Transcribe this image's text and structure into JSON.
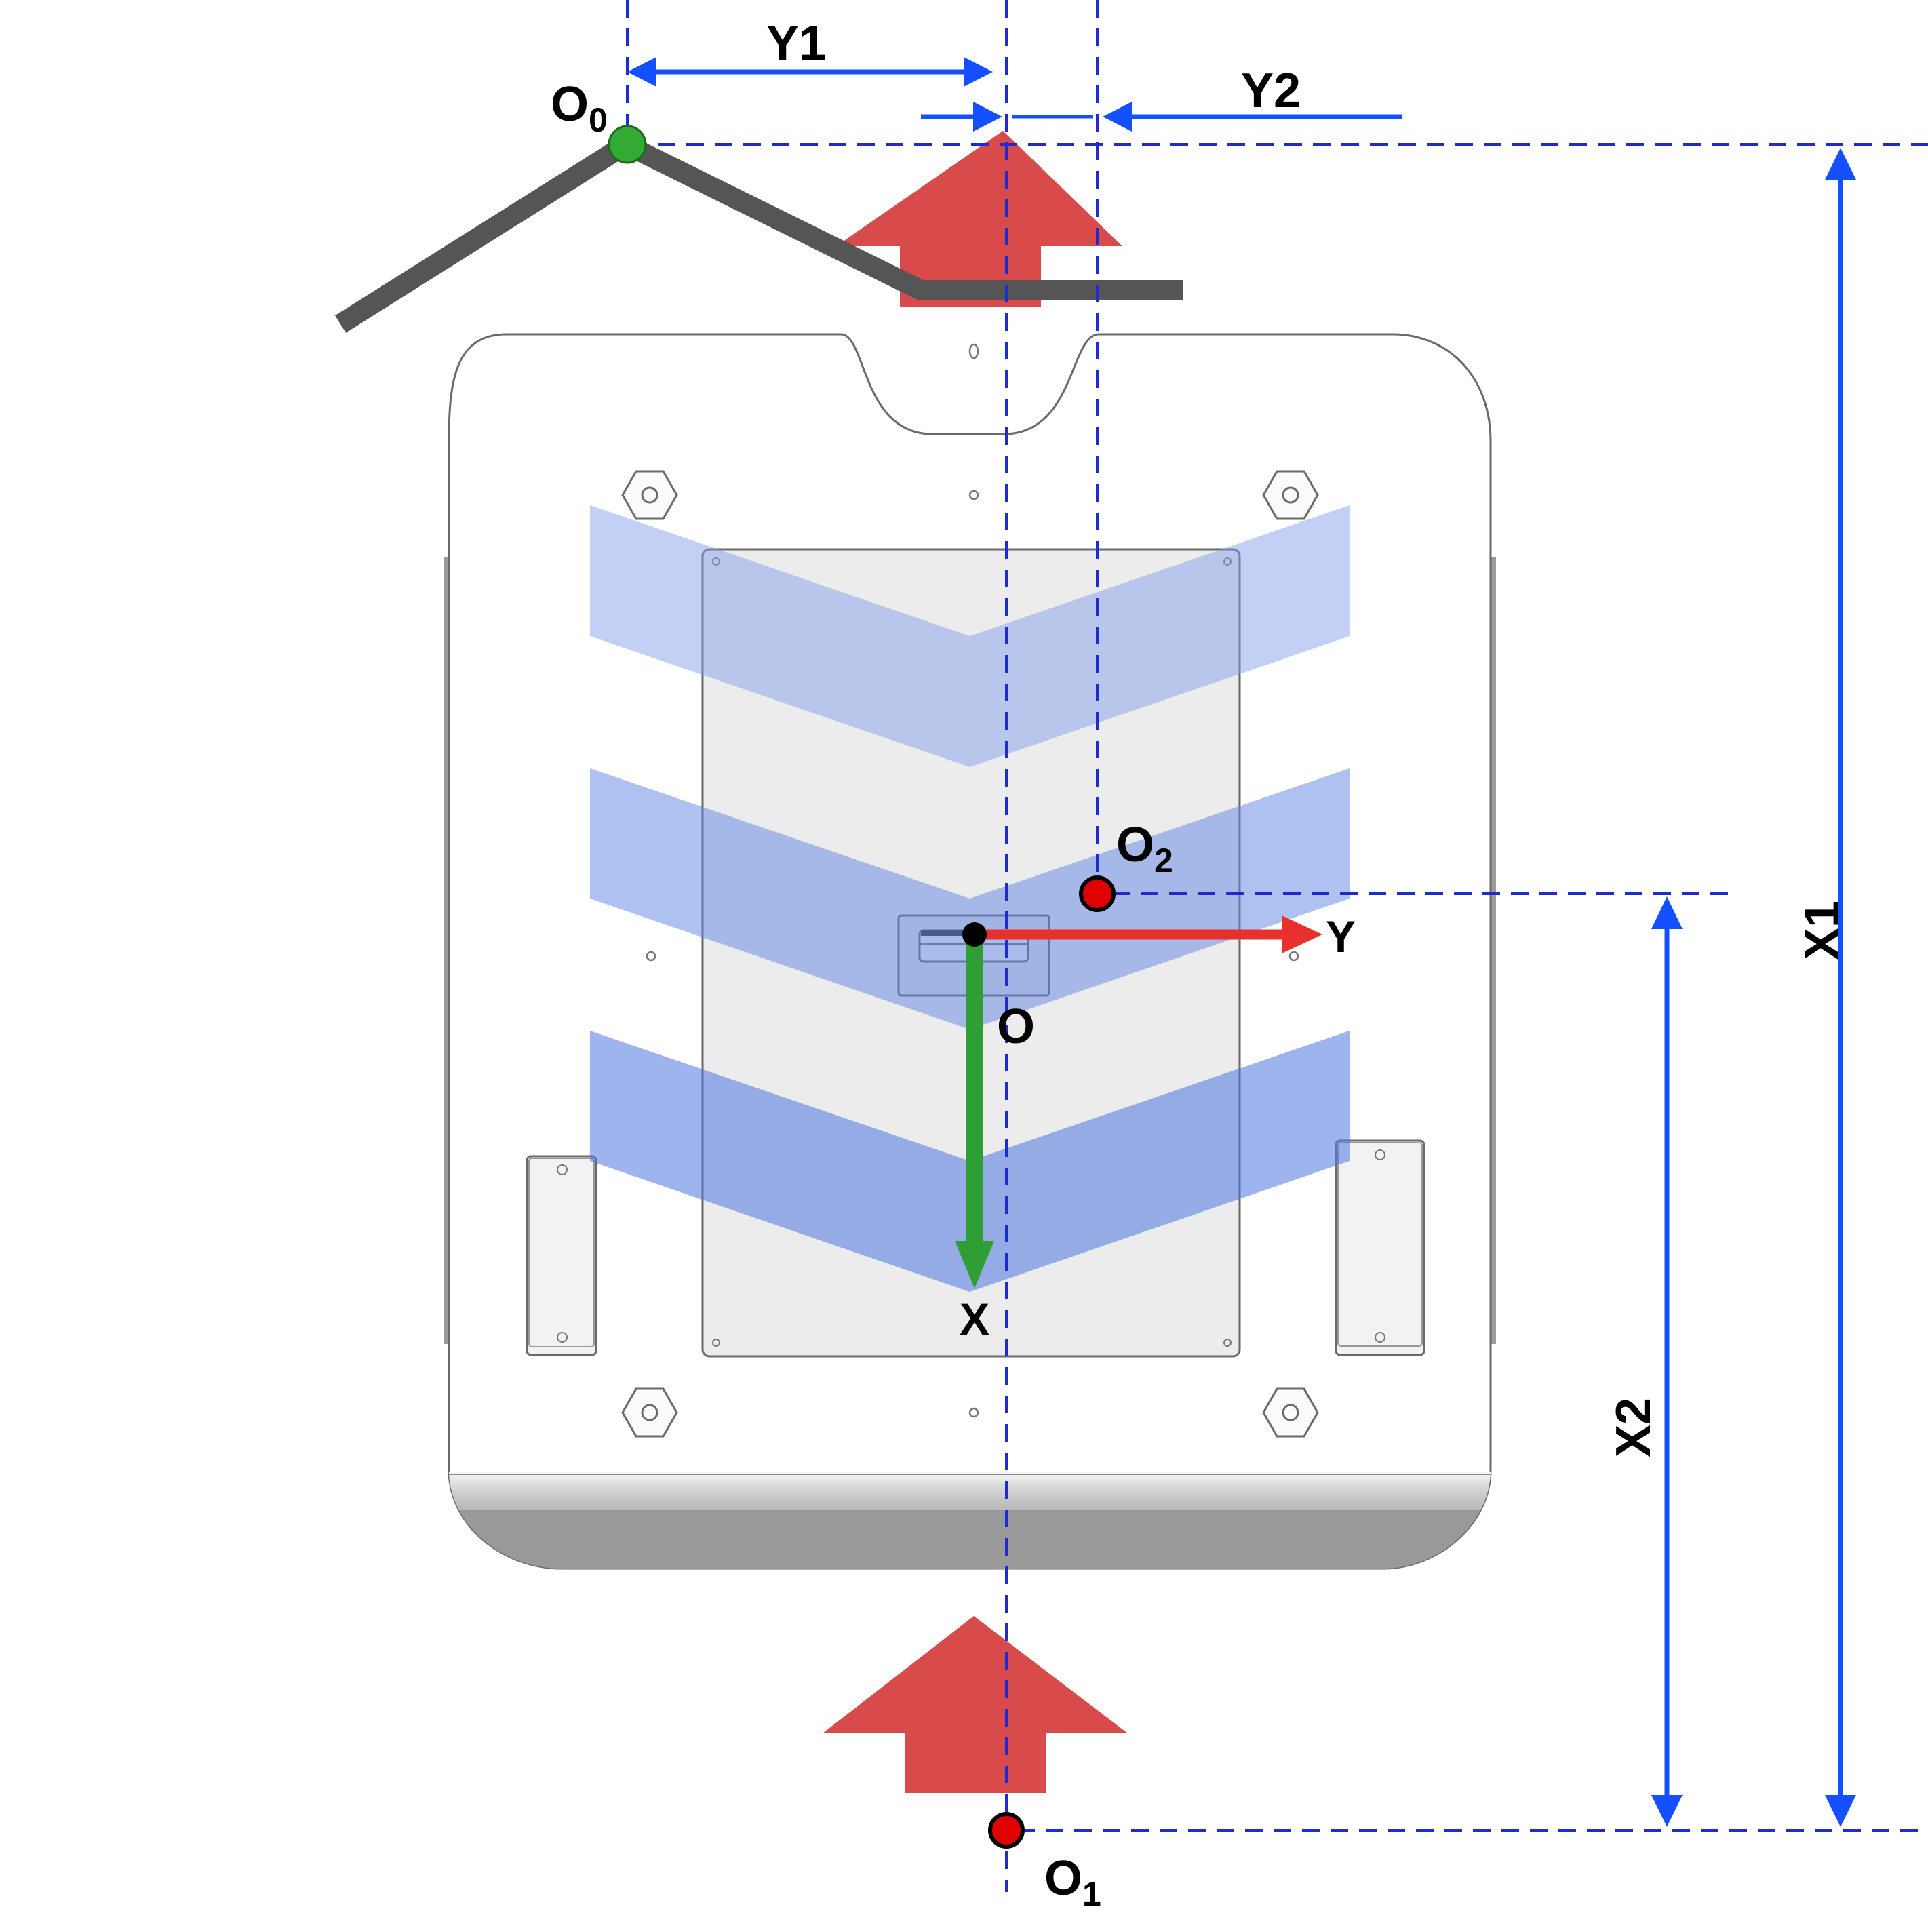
{
  "labels": {
    "o0": {
      "main": "O",
      "sub": "0"
    },
    "o1": {
      "main": "O",
      "sub": "1"
    },
    "o2": {
      "main": "O",
      "sub": "2"
    },
    "o": "O",
    "axis_x": "X",
    "axis_y": "Y",
    "dim_x1": "X1",
    "dim_x2": "X2",
    "dim_y1": "Y1",
    "dim_y2": "Y2"
  },
  "colors": {
    "dimension_blue": "#1450ff",
    "guide_blue": "#1e2ccf",
    "push_arrow_red": "#d94a4a",
    "axis_y_red": "#e8302d",
    "axis_x_green": "#2e9e35",
    "point_red": "#e00000",
    "point_green": "#33aa33",
    "chevron_blue": "#7b9be8",
    "wall_gray": "#555555",
    "robot_outline": "#6a6a6a",
    "robot_panel": "#ececec"
  },
  "icons": {
    "push_arrows": "arrow-up-icon",
    "mount_nuts": "hexagon-nut-icon"
  }
}
